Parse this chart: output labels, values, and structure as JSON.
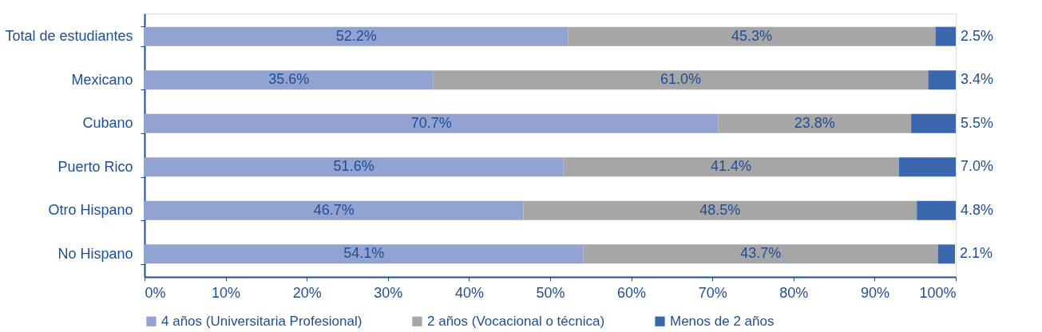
{
  "chart_data": {
    "type": "bar",
    "orientation": "horizontal",
    "stacked": true,
    "legend": "bottom",
    "grid": false,
    "categories": [
      "Total de estudiantes",
      "Mexicano",
      "Cubano",
      "Puerto Rico",
      "Otro Hispano",
      "No Hispano"
    ],
    "xlim": [
      0,
      100
    ],
    "xticks": [
      {
        "value": 0,
        "label": "0%"
      },
      {
        "value": 10,
        "label": "10%"
      },
      {
        "value": 20,
        "label": "20%"
      },
      {
        "value": 30,
        "label": "30%"
      },
      {
        "value": 40,
        "label": "40%"
      },
      {
        "value": 50,
        "label": "50%"
      },
      {
        "value": 60,
        "label": "60%"
      },
      {
        "value": 70,
        "label": "70%"
      },
      {
        "value": 80,
        "label": "80%"
      },
      {
        "value": 90,
        "label": "90%"
      },
      {
        "value": 100,
        "label": "100%"
      }
    ],
    "series": [
      {
        "name": "4 años (Universitaria Profesional)",
        "color": "#93a3d1",
        "values": [
          52.2,
          35.6,
          70.7,
          51.6,
          46.7,
          54.1
        ],
        "value_labels": [
          "52.2%",
          "35.6%",
          "70.7%",
          "51.6%",
          "46.7%",
          "54.1%"
        ]
      },
      {
        "name": "2 años (Vocacional o técnica)",
        "color": "#a6a6a6",
        "values": [
          45.3,
          61.0,
          23.8,
          41.4,
          48.5,
          43.7
        ],
        "value_labels": [
          "45.3%",
          "61.0%",
          "23.8%",
          "41.4%",
          "48.5%",
          "43.7%"
        ]
      },
      {
        "name": "Menos de 2 años",
        "color": "#3a67ad",
        "values": [
          2.5,
          3.4,
          5.5,
          7.0,
          4.8,
          2.1
        ],
        "value_labels": [
          "2.5%",
          "3.4%",
          "5.5%",
          "7.0%",
          "4.8%",
          "2.1%"
        ]
      }
    ]
  }
}
